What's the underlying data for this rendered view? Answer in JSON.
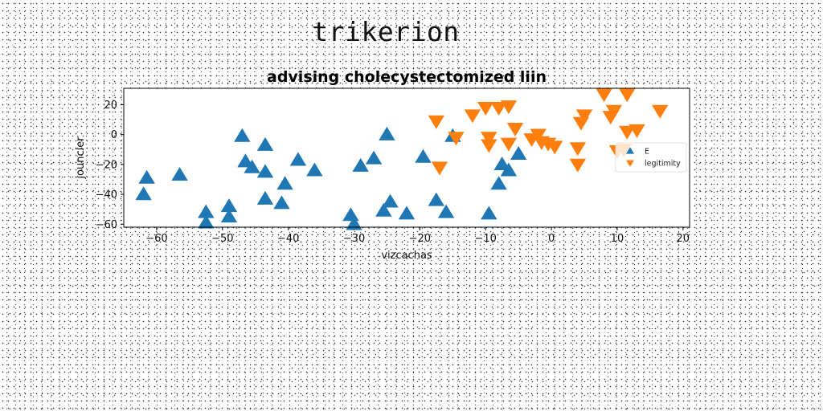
{
  "figure": {
    "suptitle": "trikerion"
  },
  "chart_data": {
    "type": "scatter",
    "title": "advising cholecystectomized liin",
    "xlabel": "vizcachas",
    "ylabel": "jouncier",
    "xlim": [
      -65,
      21
    ],
    "ylim": [
      -62,
      31
    ],
    "xticks": [
      -60,
      -50,
      -40,
      -30,
      -20,
      -10,
      0,
      10,
      20
    ],
    "yticks": [
      -60,
      -40,
      -20,
      0,
      20
    ],
    "legend": {
      "placement": "right",
      "entries": [
        "E",
        "legitimity"
      ]
    },
    "series": [
      {
        "name": "E",
        "marker": "triangle-up",
        "color": "#1f77b4",
        "points": [
          [
            -62,
            -40
          ],
          [
            -61.5,
            -29
          ],
          [
            -56.5,
            -27
          ],
          [
            -52.5,
            -52
          ],
          [
            -52.5,
            -59
          ],
          [
            -49,
            -48
          ],
          [
            -49,
            -55
          ],
          [
            -47,
            -1
          ],
          [
            -46.5,
            -18
          ],
          [
            -45.5,
            -22
          ],
          [
            -43.5,
            -7
          ],
          [
            -43.5,
            -25
          ],
          [
            -43.5,
            -43
          ],
          [
            -40.5,
            -33
          ],
          [
            -41,
            -46
          ],
          [
            -38.5,
            -17
          ],
          [
            -36,
            -24
          ],
          [
            -30.5,
            -54
          ],
          [
            -30,
            -60
          ],
          [
            -29,
            -21
          ],
          [
            -27,
            -16
          ],
          [
            -25.5,
            -51
          ],
          [
            -25,
            0
          ],
          [
            -24.5,
            -45
          ],
          [
            -22,
            -53
          ],
          [
            -19.5,
            -15
          ],
          [
            -17.5,
            -44
          ],
          [
            -16,
            -52
          ],
          [
            -15,
            -1
          ],
          [
            -9.5,
            -53
          ],
          [
            -8,
            -33
          ],
          [
            -7.5,
            -20
          ],
          [
            -6.5,
            -24
          ],
          [
            -5,
            -13
          ]
        ]
      },
      {
        "name": "legitimity",
        "marker": "triangle-down",
        "color": "#ff7f0e",
        "points": [
          [
            -17.5,
            9
          ],
          [
            -17,
            -22
          ],
          [
            -14.5,
            -2
          ],
          [
            -12,
            13
          ],
          [
            -10,
            18
          ],
          [
            -9.5,
            -2
          ],
          [
            -9.5,
            -7
          ],
          [
            -8,
            18
          ],
          [
            -6.5,
            19
          ],
          [
            -6.5,
            -6
          ],
          [
            -5.5,
            4
          ],
          [
            -3,
            -3
          ],
          [
            -2,
            0
          ],
          [
            -1.5,
            -5
          ],
          [
            -0.5,
            -6
          ],
          [
            0.5,
            -8
          ],
          [
            4,
            -9
          ],
          [
            4,
            -20
          ],
          [
            4.5,
            8
          ],
          [
            5,
            13
          ],
          [
            8,
            27
          ],
          [
            9,
            12
          ],
          [
            9.5,
            16
          ],
          [
            10,
            -11
          ],
          [
            11,
            -10
          ],
          [
            11.5,
            27
          ],
          [
            11.5,
            2
          ],
          [
            13,
            3
          ],
          [
            16.5,
            16
          ]
        ]
      }
    ]
  }
}
